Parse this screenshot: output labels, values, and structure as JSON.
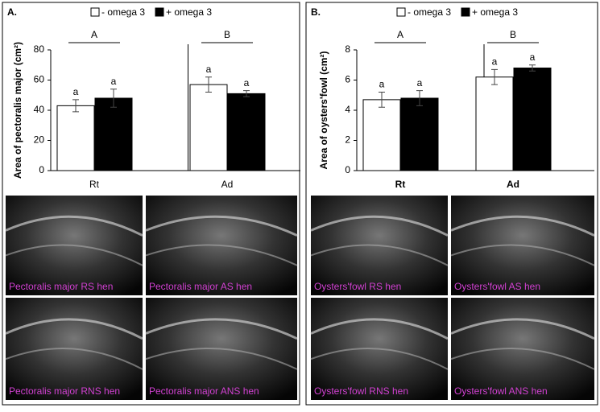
{
  "chart_data": [
    {
      "type": "bar",
      "panel": "A.",
      "ylabel": "Area of pectoralis major  (cm²)",
      "categories": [
        "Rt",
        "Ad"
      ],
      "group_labels": [
        "A",
        "B"
      ],
      "series": [
        {
          "name": "- omega 3",
          "color": "#ffffff",
          "values": [
            43,
            57
          ],
          "errors": [
            4,
            5
          ],
          "significance": [
            "a",
            "a"
          ]
        },
        {
          "name": "+ omega 3",
          "color": "#000000",
          "values": [
            48,
            51
          ],
          "errors": [
            6,
            2
          ],
          "significance": [
            "a",
            "a"
          ]
        }
      ],
      "ylim": [
        0,
        80
      ],
      "yticks": [
        0,
        20,
        40,
        60,
        80
      ],
      "images": [
        "Pectoralis major RS hen",
        "Pectoralis major AS hen",
        "Pectoralis major RNS hen",
        "Pectoralis major ANS hen"
      ]
    },
    {
      "type": "bar",
      "panel": "B.",
      "ylabel": "Area of oysters'fowl (cm²)",
      "categories": [
        "Rt",
        "Ad"
      ],
      "group_labels": [
        "A",
        "B"
      ],
      "series": [
        {
          "name": "- omega 3",
          "color": "#ffffff",
          "values": [
            4.7,
            6.2
          ],
          "errors": [
            0.5,
            0.5
          ],
          "significance": [
            "a",
            "a"
          ]
        },
        {
          "name": "+ omega 3",
          "color": "#000000",
          "values": [
            4.8,
            6.8
          ],
          "errors": [
            0.5,
            0.2
          ],
          "significance": [
            "a",
            "a"
          ]
        }
      ],
      "ylim": [
        0,
        8
      ],
      "yticks": [
        0,
        2,
        4,
        6,
        8
      ],
      "images": [
        "Oysters'fowl RS hen",
        "Oysters'fowl AS hen",
        "Oysters'fowl RNS hen",
        "Oysters'fowl ANS hen"
      ]
    }
  ]
}
